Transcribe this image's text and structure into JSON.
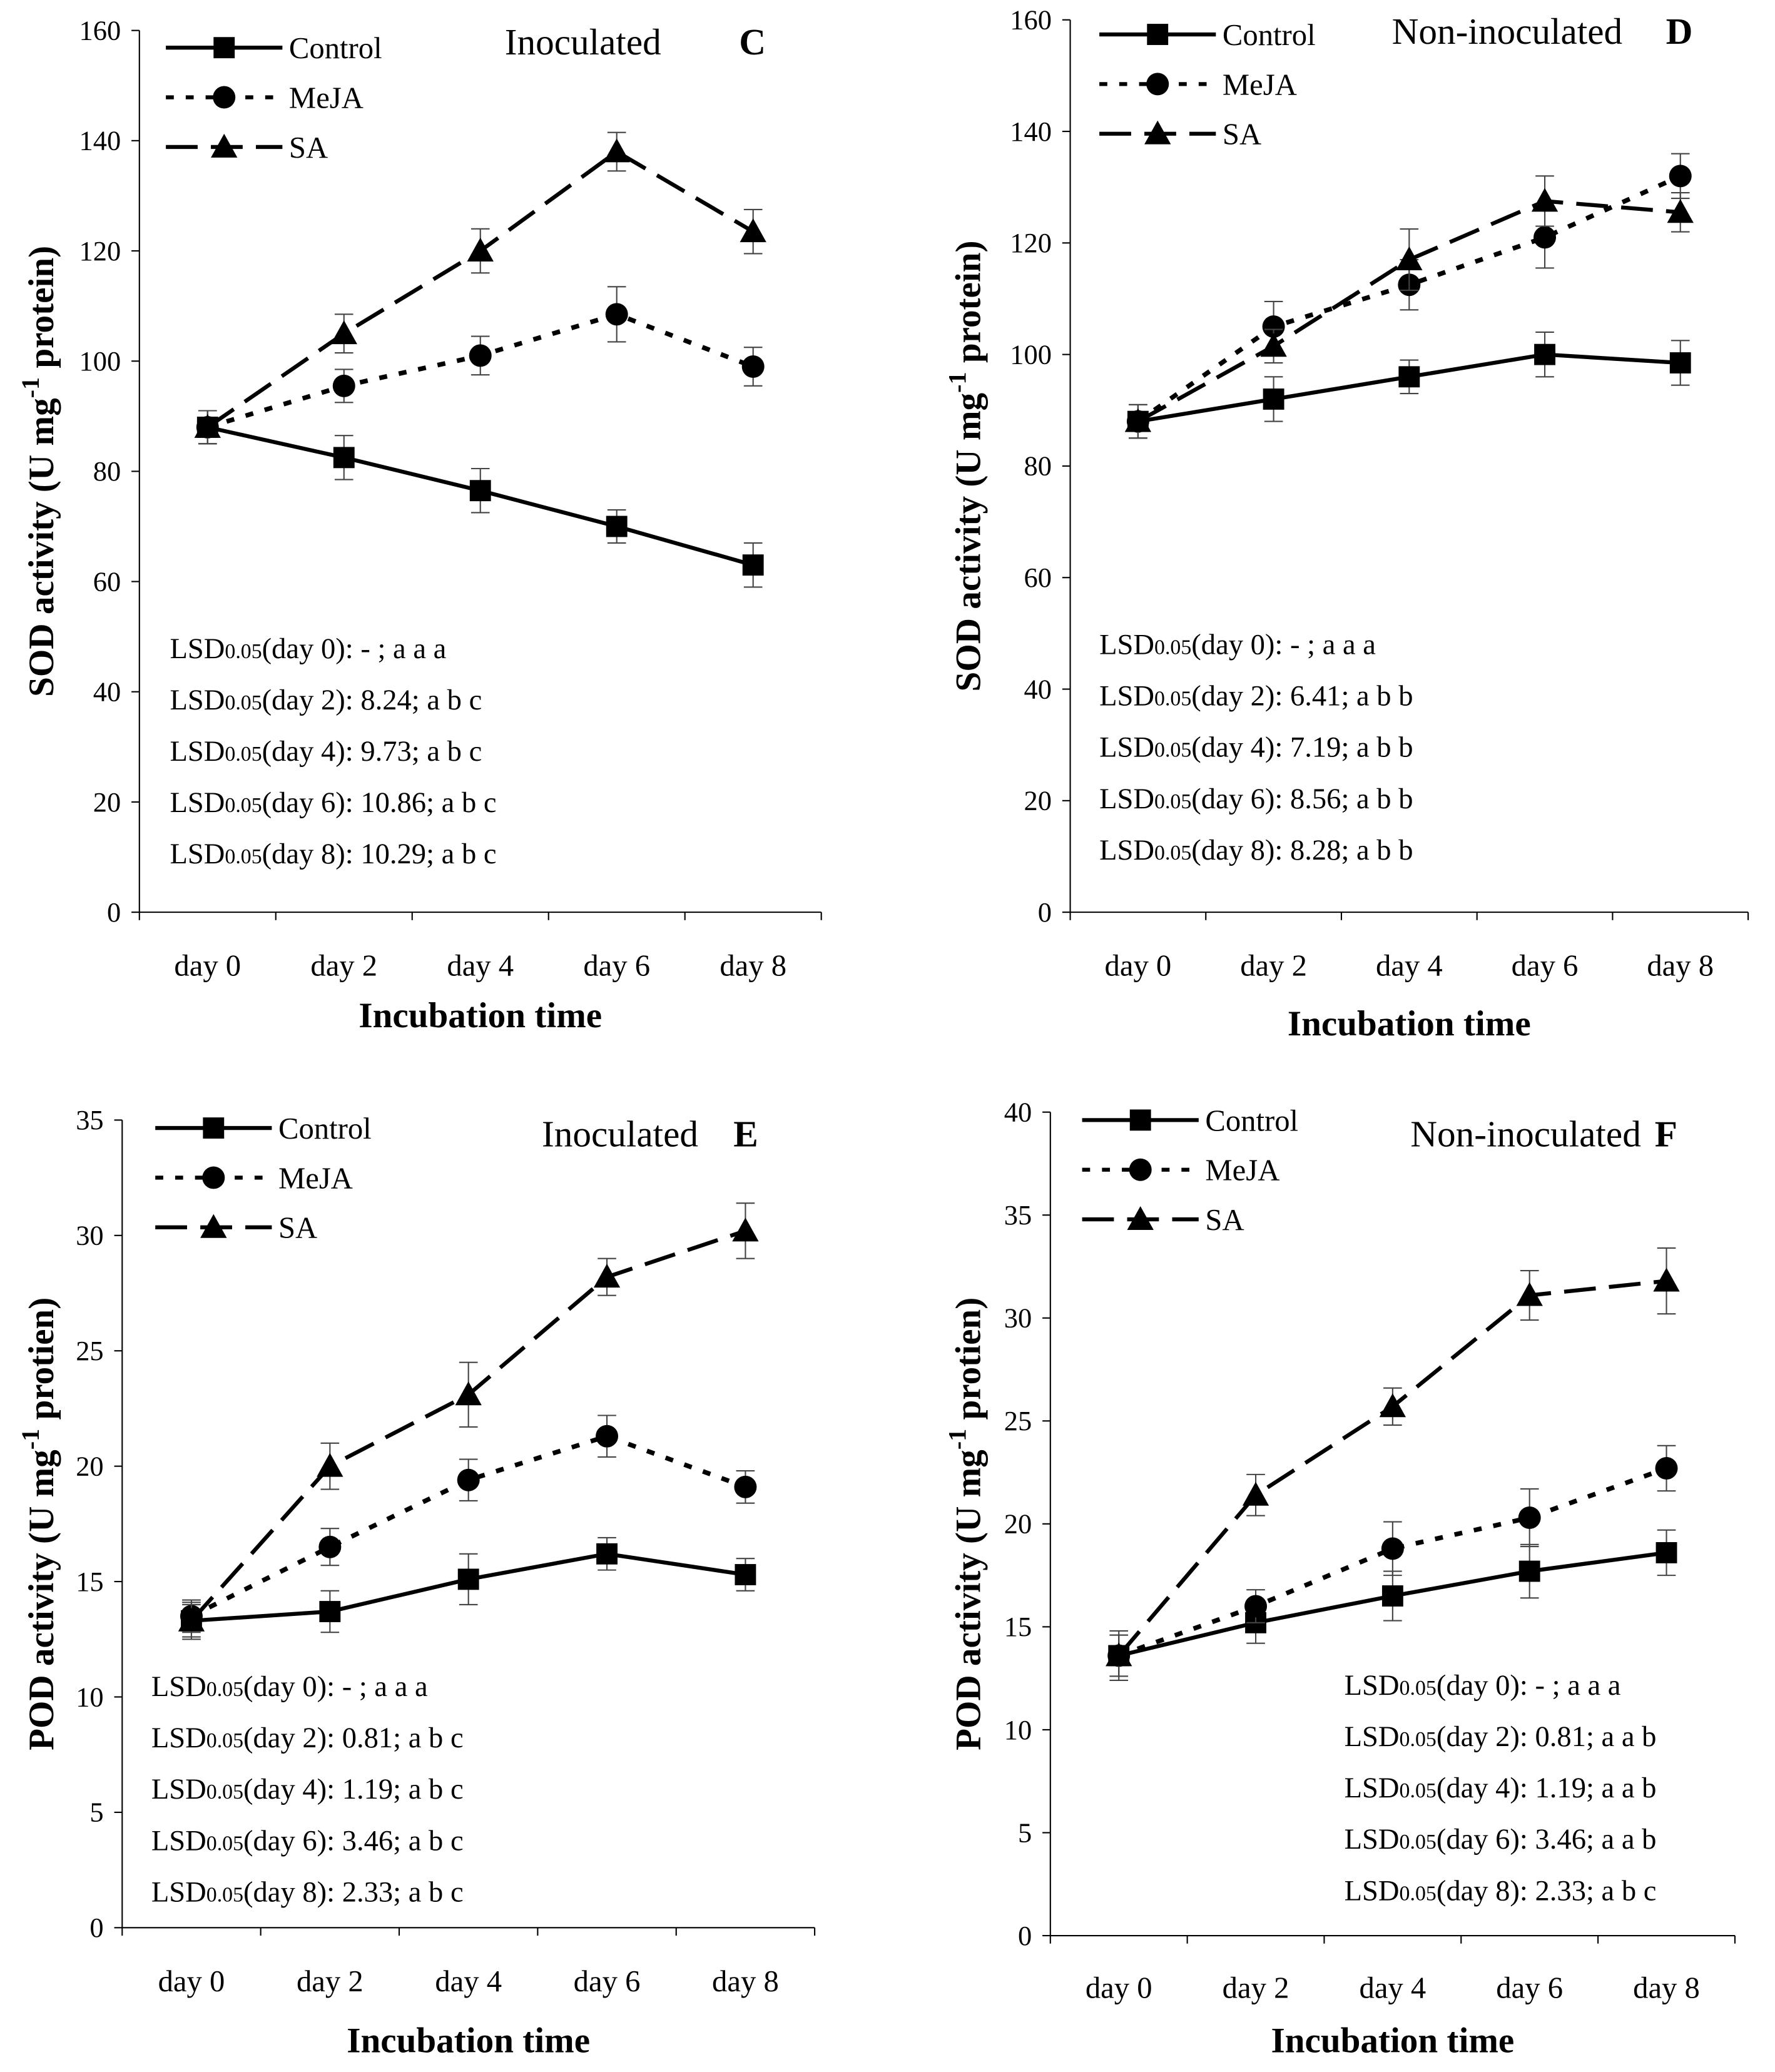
{
  "chart_data": [
    {
      "type": "line",
      "panel": "C",
      "subtitle": "Inoculated",
      "ylabel_main": "SOD activity (U mg",
      "ylabel_sup": "-1",
      "ylabel_end": " protein)",
      "xlabel": "Incubation time",
      "categories": [
        "day 0",
        "day 2",
        "day 4",
        "day 6",
        "day 8"
      ],
      "ylim": [
        0,
        160
      ],
      "yticks": [
        0,
        20,
        40,
        60,
        80,
        100,
        120,
        140,
        160
      ],
      "series": [
        {
          "name": "Control",
          "marker": "square",
          "values": [
            88,
            82.5,
            76.5,
            70,
            63
          ],
          "errors": [
            3,
            4,
            4,
            3,
            4
          ]
        },
        {
          "name": "MeJA",
          "marker": "circle",
          "values": [
            88,
            95.5,
            101,
            108.5,
            99
          ],
          "errors": [
            3,
            3,
            3.5,
            5,
            3.5
          ]
        },
        {
          "name": "SA",
          "marker": "triangle",
          "values": [
            88,
            105,
            120,
            138,
            123.5
          ],
          "errors": [
            3,
            3.5,
            4,
            3.5,
            4
          ]
        }
      ],
      "annotations": [
        {
          "pre": "LSD",
          "sub": "0.05",
          "post": "(day 0): - ;  a a a"
        },
        {
          "pre": "LSD",
          "sub": "0.05",
          "post": "(day 2): 8.24; a b c"
        },
        {
          "pre": "LSD",
          "sub": "0.05",
          "post": "(day 4): 9.73; a b c"
        },
        {
          "pre": "LSD",
          "sub": "0.05",
          "post": "(day 6): 10.86; a b c"
        },
        {
          "pre": "LSD",
          "sub": "0.05",
          "post": "(day 8): 10.29; a b c"
        }
      ],
      "legend": "top-left"
    },
    {
      "type": "line",
      "panel": "D",
      "subtitle": "Non-inoculated",
      "ylabel_main": "SOD activity (U mg",
      "ylabel_sup": "-1",
      "ylabel_end": " protein)",
      "xlabel": "Incubation time",
      "categories": [
        "day 0",
        "day 2",
        "day 4",
        "day 6",
        "day 8"
      ],
      "ylim": [
        0,
        160
      ],
      "yticks": [
        0,
        20,
        40,
        60,
        80,
        100,
        120,
        140,
        160
      ],
      "series": [
        {
          "name": "Control",
          "marker": "square",
          "values": [
            88,
            92,
            96,
            100,
            98.5
          ],
          "errors": [
            3,
            4,
            3,
            4,
            4
          ]
        },
        {
          "name": "MeJA",
          "marker": "circle",
          "values": [
            88,
            105,
            112.5,
            121,
            132
          ],
          "errors": [
            3,
            4.5,
            4.5,
            5.5,
            4
          ]
        },
        {
          "name": "SA",
          "marker": "triangle",
          "values": [
            88,
            101.5,
            117,
            127.5,
            125.5
          ],
          "errors": [
            3,
            3,
            5.5,
            4.5,
            3.5
          ]
        }
      ],
      "annotations": [
        {
          "pre": "LSD",
          "sub": "0.05",
          "post": "(day 0): - ;  a a a"
        },
        {
          "pre": "LSD",
          "sub": "0.05",
          "post": "(day 2): 6.41; a b b"
        },
        {
          "pre": "LSD",
          "sub": "0.05",
          "post": "(day 4): 7.19; a b b"
        },
        {
          "pre": "LSD",
          "sub": "0.05",
          "post": "(day 6): 8.56; a b b"
        },
        {
          "pre": "LSD",
          "sub": "0.05",
          "post": "(day 8): 8.28; a b b"
        }
      ],
      "legend": "top-left"
    },
    {
      "type": "line",
      "panel": "E",
      "subtitle": "Inoculated",
      "ylabel_main": "POD activity (U mg",
      "ylabel_sup": "-1",
      "ylabel_end": " protien)",
      "xlabel": "Incubation time",
      "categories": [
        "day 0",
        "day 2",
        "day 4",
        "day 6",
        "day 8"
      ],
      "ylim": [
        0,
        35
      ],
      "yticks": [
        0,
        5,
        10,
        15,
        20,
        25,
        30,
        35
      ],
      "series": [
        {
          "name": "Control",
          "marker": "square",
          "values": [
            13.3,
            13.7,
            15.1,
            16.2,
            15.3
          ],
          "errors": [
            0.8,
            0.9,
            1.1,
            0.7,
            0.7
          ]
        },
        {
          "name": "MeJA",
          "marker": "circle",
          "values": [
            13.5,
            16.5,
            19.4,
            21.3,
            19.1
          ],
          "errors": [
            0.7,
            0.8,
            0.9,
            0.9,
            0.7
          ]
        },
        {
          "name": "SA",
          "marker": "triangle",
          "values": [
            13.3,
            20,
            23.1,
            28.2,
            30.2
          ],
          "errors": [
            0.7,
            1.0,
            1.4,
            0.8,
            1.2
          ]
        }
      ],
      "annotations": [
        {
          "pre": "LSD",
          "sub": "0.05",
          "post": "(day 0): - ;  a a a"
        },
        {
          "pre": "LSD",
          "sub": "0.05",
          "post": "(day 2): 0.81; a b c"
        },
        {
          "pre": "LSD",
          "sub": "0.05",
          "post": "(day 4): 1.19; a b c"
        },
        {
          "pre": "LSD",
          "sub": "0.05",
          "post": "(day 6): 3.46; a b c"
        },
        {
          "pre": "LSD",
          "sub": "0.05",
          "post": "(day 8): 2.33; a b c"
        }
      ],
      "legend": "top-left"
    },
    {
      "type": "line",
      "panel": "F",
      "subtitle": "Non-inoculated",
      "ylabel_main": "POD activity (U mg",
      "ylabel_sup": "-1",
      "ylabel_end": " protien)",
      "xlabel": "Incubation time",
      "categories": [
        "day 0",
        "day 2",
        "day 4",
        "day 6",
        "day 8"
      ],
      "ylim": [
        0,
        40
      ],
      "yticks": [
        0,
        5,
        10,
        15,
        20,
        25,
        30,
        35,
        40
      ],
      "series": [
        {
          "name": "Control",
          "marker": "square",
          "values": [
            13.6,
            15.2,
            16.5,
            17.7,
            18.6
          ],
          "errors": [
            1.2,
            1.0,
            1.2,
            1.3,
            1.1
          ]
        },
        {
          "name": "MeJA",
          "marker": "circle",
          "values": [
            13.6,
            16,
            18.8,
            20.3,
            22.7
          ],
          "errors": [
            1.0,
            0.8,
            1.3,
            1.4,
            1.1
          ]
        },
        {
          "name": "SA",
          "marker": "triangle",
          "values": [
            13.6,
            21.4,
            25.7,
            31.1,
            31.8
          ],
          "errors": [
            1.0,
            1.0,
            0.9,
            1.2,
            1.6
          ]
        }
      ],
      "annotations": [
        {
          "pre": "LSD",
          "sub": "0.05",
          "post": "(day 0): - ;  a a a"
        },
        {
          "pre": "LSD",
          "sub": "0.05",
          "post": "(day 2): 0.81; a a b"
        },
        {
          "pre": "LSD",
          "sub": "0.05",
          "post": "(day 4): 1.19; a a b"
        },
        {
          "pre": "LSD",
          "sub": "0.05",
          "post": "(day 6): 3.46; a a b"
        },
        {
          "pre": "LSD",
          "sub": "0.05",
          "post": "(day 8): 2.33; a b c"
        }
      ],
      "legend": "top-left"
    }
  ]
}
